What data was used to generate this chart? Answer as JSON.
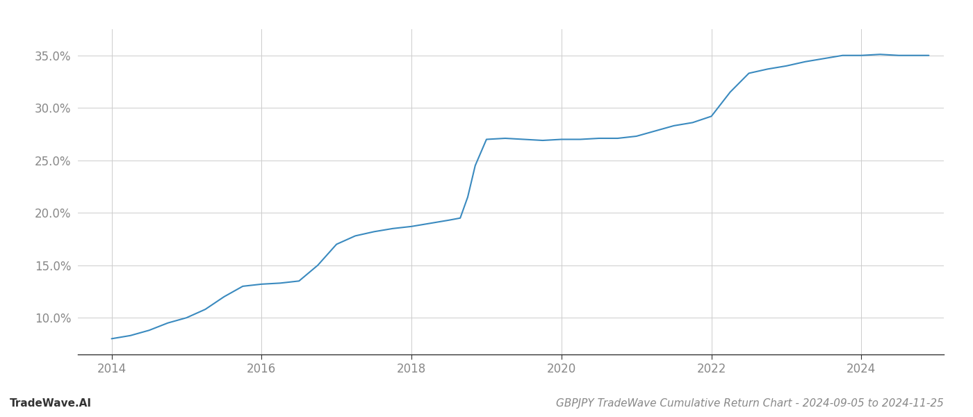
{
  "title": "GBPJPY TradeWave Cumulative Return Chart - 2024-09-05 to 2024-11-25",
  "watermark": "TradeWave.AI",
  "line_color": "#3a8abf",
  "line_width": 1.5,
  "background_color": "#ffffff",
  "grid_color": "#cccccc",
  "x_points": [
    2014.0,
    2014.25,
    2014.5,
    2014.75,
    2015.0,
    2015.25,
    2015.5,
    2015.75,
    2016.0,
    2016.25,
    2016.5,
    2016.75,
    2017.0,
    2017.25,
    2017.5,
    2017.75,
    2018.0,
    2018.25,
    2018.5,
    2018.65,
    2018.75,
    2018.85,
    2019.0,
    2019.25,
    2019.5,
    2019.75,
    2020.0,
    2020.25,
    2020.5,
    2020.75,
    2021.0,
    2021.25,
    2021.5,
    2021.75,
    2022.0,
    2022.25,
    2022.5,
    2022.75,
    2023.0,
    2023.25,
    2023.5,
    2023.75,
    2024.0,
    2024.25,
    2024.5,
    2024.75,
    2024.9
  ],
  "y_points": [
    8.0,
    8.3,
    8.8,
    9.5,
    10.0,
    10.8,
    12.0,
    13.0,
    13.2,
    13.3,
    13.5,
    15.0,
    17.0,
    17.8,
    18.2,
    18.5,
    18.7,
    19.0,
    19.3,
    19.5,
    21.5,
    24.5,
    27.0,
    27.1,
    27.0,
    26.9,
    27.0,
    27.0,
    27.1,
    27.1,
    27.3,
    27.8,
    28.3,
    28.6,
    29.2,
    31.5,
    33.3,
    33.7,
    34.0,
    34.4,
    34.7,
    35.0,
    35.0,
    35.1,
    35.0,
    35.0,
    35.0
  ],
  "xlim": [
    2013.55,
    2025.1
  ],
  "ylim": [
    6.5,
    37.5
  ],
  "xticks": [
    2014,
    2016,
    2018,
    2020,
    2022,
    2024
  ],
  "yticks": [
    10.0,
    15.0,
    20.0,
    25.0,
    30.0,
    35.0
  ],
  "tick_fontsize": 12,
  "title_fontsize": 11,
  "watermark_fontsize": 11
}
